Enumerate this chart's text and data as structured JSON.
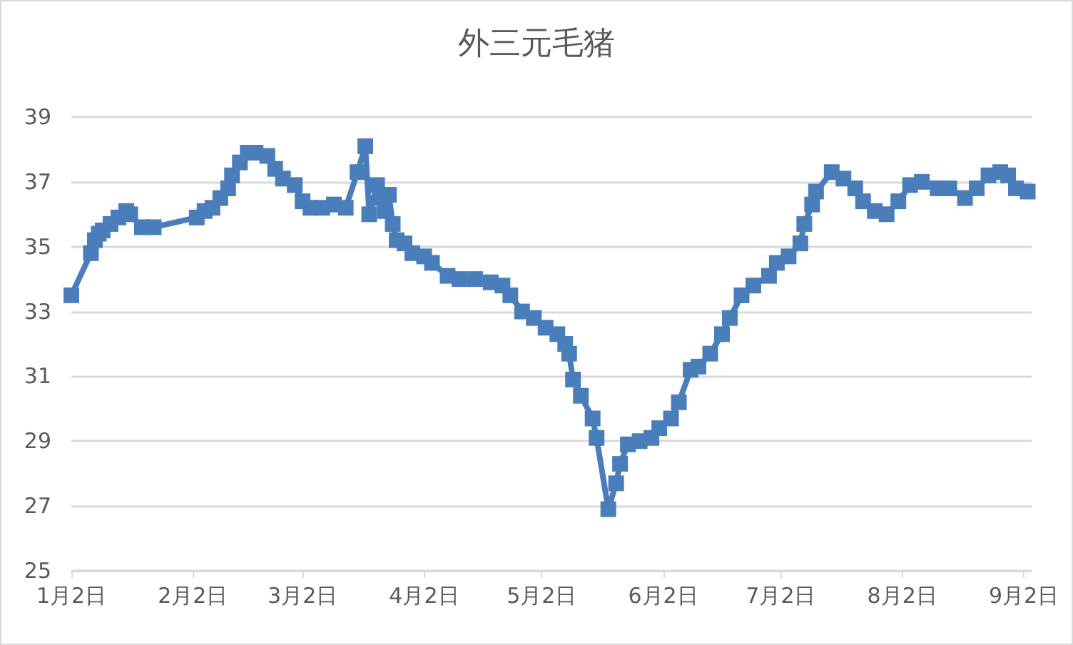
{
  "chart_data": {
    "type": "line",
    "title": "外三元毛猪",
    "x": [
      "--01-02",
      "--01-07",
      "--01-08",
      "--01-09",
      "--01-10",
      "--01-12",
      "--01-14",
      "--01-16",
      "--01-17",
      "--01-20",
      "--01-23",
      "--02-03",
      "--02-05",
      "--02-07",
      "--02-09",
      "--02-11",
      "--02-12",
      "--02-14",
      "--02-16",
      "--02-18",
      "--02-21",
      "--02-23",
      "--02-25",
      "--02-28",
      "--03-02",
      "--03-04",
      "--03-07",
      "--03-10",
      "--03-13",
      "--03-16",
      "--03-18",
      "--03-19",
      "--03-21",
      "--03-22",
      "--03-23",
      "--03-24",
      "--03-25",
      "--03-26",
      "--03-28",
      "--03-30",
      "--04-02",
      "--04-04",
      "--04-08",
      "--04-11",
      "--04-15",
      "--04-19",
      "--04-22",
      "--04-24",
      "--04-27",
      "--04-30",
      "--05-03",
      "--05-06",
      "--05-08",
      "--05-09",
      "--05-10",
      "--05-12",
      "--05-15",
      "--05-16",
      "--05-19",
      "--05-21",
      "--05-22",
      "--05-24",
      "--05-27",
      "--05-30",
      "--06-01",
      "--06-04",
      "--06-06",
      "--06-09",
      "--06-11",
      "--06-14",
      "--06-17",
      "--06-19",
      "--06-22",
      "--06-25",
      "--06-29",
      "--07-01",
      "--07-04",
      "--07-07",
      "--07-08",
      "--07-10",
      "--07-11",
      "--07-15",
      "--07-18",
      "--07-21",
      "--07-23",
      "--07-26",
      "--07-29",
      "--08-01",
      "--08-04",
      "--08-07",
      "--08-11",
      "--08-14",
      "--08-18",
      "--08-21",
      "--08-24",
      "--08-27",
      "--08-29",
      "--08-31",
      "--09-03"
    ],
    "values": [
      33.5,
      34.8,
      35.2,
      35.4,
      35.5,
      35.7,
      35.9,
      36.1,
      36.0,
      35.6,
      35.6,
      35.9,
      36.1,
      36.2,
      36.5,
      36.8,
      37.2,
      37.6,
      37.9,
      37.9,
      37.8,
      37.4,
      37.1,
      36.9,
      36.4,
      36.2,
      36.2,
      36.3,
      36.2,
      37.3,
      38.1,
      36.0,
      36.9,
      36.5,
      36.1,
      36.6,
      35.7,
      35.2,
      35.1,
      34.8,
      34.7,
      34.5,
      34.1,
      34.0,
      34.0,
      33.9,
      33.8,
      33.5,
      33.0,
      32.8,
      32.5,
      32.3,
      32.0,
      31.7,
      30.9,
      30.4,
      29.7,
      29.1,
      26.9,
      27.7,
      28.3,
      28.9,
      29.0,
      29.1,
      29.4,
      29.7,
      30.2,
      31.2,
      31.3,
      31.7,
      32.3,
      32.8,
      33.5,
      33.8,
      34.1,
      34.5,
      34.7,
      35.1,
      35.7,
      36.3,
      36.7,
      37.3,
      37.1,
      36.8,
      36.4,
      36.1,
      36.0,
      36.4,
      36.9,
      37.0,
      36.8,
      36.8,
      36.5,
      36.8,
      37.2,
      37.3,
      37.2,
      36.8,
      36.7
    ],
    "color": "#4a7ebb",
    "xlim": [
      "--01-02",
      "--09-04"
    ],
    "xticks": [
      {
        "value": "--01-02",
        "label": "1月2日"
      },
      {
        "value": "--02-02",
        "label": "2月2日"
      },
      {
        "value": "--03-02",
        "label": "3月2日"
      },
      {
        "value": "--04-02",
        "label": "4月2日"
      },
      {
        "value": "--05-02",
        "label": "5月2日"
      },
      {
        "value": "--06-02",
        "label": "6月2日"
      },
      {
        "value": "--07-02",
        "label": "7月2日"
      },
      {
        "value": "--08-02",
        "label": "8月2日"
      },
      {
        "value": "--09-02",
        "label": "9月2日"
      }
    ],
    "ylim": [
      25,
      39
    ],
    "yticks": [
      25,
      27,
      29,
      31,
      33,
      35,
      37,
      39
    ],
    "grid": "y",
    "marker": "square"
  }
}
